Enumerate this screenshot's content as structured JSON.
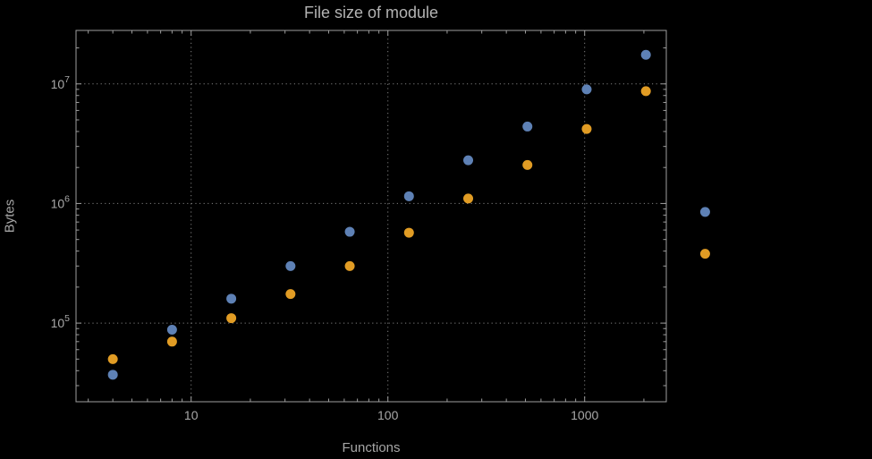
{
  "chart_data": {
    "type": "scatter",
    "title": "File size of module",
    "xlabel": "Functions",
    "ylabel": "Bytes",
    "x_scale": "log",
    "y_scale": "log",
    "grid": true,
    "legend": false,
    "x": [
      4,
      8,
      16,
      32,
      64,
      128,
      256,
      512,
      1024,
      2048,
      4096
    ],
    "series": [
      {
        "name": "blue-series",
        "color": "#5e81b5",
        "values": [
          37000,
          88000,
          160000,
          300000,
          580000,
          1150000,
          2300000,
          4400000,
          9000000,
          17500000,
          850000
        ]
      },
      {
        "name": "orange-series",
        "color": "#e19c24",
        "values": [
          50000,
          70000,
          110000,
          175000,
          300000,
          570000,
          1100000,
          2100000,
          4200000,
          8700000,
          380000
        ]
      }
    ],
    "x_ticks": [
      10,
      100,
      1000
    ],
    "x_tick_labels": [
      "10",
      "100",
      "1000"
    ],
    "y_ticks": [
      100000,
      1000000,
      10000000
    ],
    "y_tick_labels": [
      "10^5",
      "10^6",
      "10^7"
    ],
    "x_range": [
      2.6,
      2600
    ],
    "y_range": [
      22000,
      28000000
    ]
  },
  "colors": {
    "background": "#000000",
    "frame": "#9e9e9e",
    "gridline": "#7f7f7f",
    "text": "#a8a8a8"
  }
}
